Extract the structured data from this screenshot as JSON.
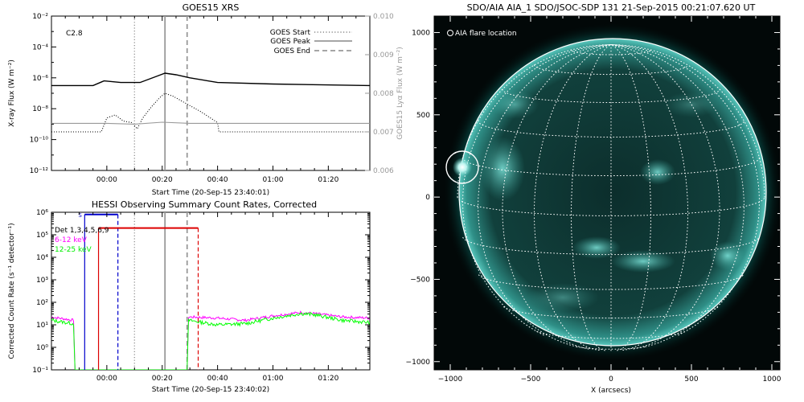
{
  "chart_data": [
    {
      "type": "line",
      "title": "GOES15 XRS",
      "xlabel": "Start Time (20-Sep-15 23:40:01)",
      "ylabel": "X-ray Flux (W m⁻²)",
      "ylabel_right": "GOES15 Lyα Flux (W m⁻²)",
      "x_ticks": [
        "00:00",
        "00:20",
        "00:40",
        "01:00",
        "01:20"
      ],
      "y_ticks": [
        "10⁻¹²",
        "10⁻¹⁰",
        "10⁻⁸",
        "10⁻⁶",
        "10⁻⁴",
        "10⁻²"
      ],
      "y_ticks_right": [
        "0.006",
        "0.007",
        "0.008",
        "0.009",
        "0.010"
      ],
      "xlim_min": [
        -20,
        95
      ],
      "ylim_log10": [
        -12,
        -2
      ],
      "ylim_right": [
        0.006,
        0.01
      ],
      "flare_class": "C2.8",
      "legend": [
        "GOES Start",
        "GOES Peak",
        "GOES End"
      ],
      "legend_placement": "top-right",
      "events_min": {
        "start": 10,
        "peak": 21,
        "end": 29
      },
      "series": [
        {
          "name": "",
          "x": [
            -20,
            -5,
            -1,
            5,
            12,
            18,
            21,
            25,
            30,
            40,
            60,
            95
          ],
          "log10y": [
            -6.5,
            -6.5,
            -6.2,
            -6.3,
            -6.3,
            -5.9,
            -5.7,
            -5.8,
            -6.0,
            -6.3,
            -6.4,
            -6.5
          ]
        },
        {
          "name": "",
          "x": [
            -20,
            -2,
            0,
            3,
            6,
            9,
            11,
            13,
            16,
            19,
            21,
            24,
            28,
            34,
            40,
            40.5,
            60,
            95
          ],
          "log10y": [
            -9.5,
            -9.5,
            -8.6,
            -8.4,
            -8.8,
            -8.9,
            -9.3,
            -8.6,
            -7.9,
            -7.3,
            -7.0,
            -7.2,
            -7.6,
            -8.2,
            -8.9,
            -9.5,
            -9.5,
            -9.5
          ]
        },
        {
          "name": "",
          "x": [
            -20,
            0,
            10,
            20,
            30,
            40,
            60,
            80,
            95
          ],
          "y_right": [
            0.00722,
            0.00722,
            0.0072,
            0.00725,
            0.00722,
            0.00722,
            0.00722,
            0.00722,
            0.00722
          ]
        }
      ]
    },
    {
      "type": "line",
      "title": "HESSI Observing Summary Count Rates, Corrected",
      "xlabel": "Start Time (20-Sep-15 23:40:02)",
      "ylabel": "Corrected Count Rate (s⁻¹ detector⁻¹)",
      "x_ticks": [
        "00:00",
        "00:20",
        "00:40",
        "01:00",
        "01:20"
      ],
      "y_ticks": [
        "10⁻¹",
        "10⁰",
        "10¹",
        "10²",
        "10³",
        "10⁴",
        "10⁵",
        "10⁶"
      ],
      "xlim_min": [
        -20,
        95
      ],
      "ylim_log10": [
        -1,
        6
      ],
      "legend": [
        {
          "text": "Det 1,3,4,5,6,9",
          "color": "#000000"
        },
        {
          "text": "6-12 keV",
          "color": "#ff00ff"
        },
        {
          "text": "12-25 keV",
          "color": "#00ff00"
        }
      ],
      "legend_placement": "top-left",
      "events_min": {
        "start": 10,
        "peak": 21,
        "end": 29
      },
      "flag_markers": {
        "s_label": "S",
        "blue_min": [
          -8,
          4
        ],
        "red_min": [
          -3,
          33
        ],
        "red_log10": 5.3
      },
      "series": [
        {
          "name": "6-12 keV",
          "color": "#ff00ff",
          "x": [
            -20,
            -12,
            -11.5,
            29,
            29.5,
            40,
            50,
            60,
            70,
            75,
            85,
            95
          ],
          "log10y": [
            1.35,
            1.2,
            -1,
            -1,
            1.35,
            1.3,
            1.2,
            1.4,
            1.55,
            1.5,
            1.35,
            1.3
          ]
        },
        {
          "name": "12-25 keV",
          "color": "#00ff00",
          "x": [
            -20,
            -12,
            -11.5,
            29,
            29.5,
            40,
            50,
            60,
            70,
            75,
            85,
            95
          ],
          "log10y": [
            1.2,
            1.05,
            -1,
            -1,
            1.2,
            1.0,
            1.05,
            1.3,
            1.5,
            1.45,
            1.2,
            1.1
          ]
        }
      ]
    },
    {
      "type": "heatmap",
      "title": "SDO/AIA AIA_1 SDO/JSOC-SDP 131 21-Sep-2015 00:21:07.620 UT",
      "xlabel": "X (arcsecs)",
      "ylabel": "",
      "x_ticks": [
        "−1000",
        "−500",
        "0",
        "500",
        "1000"
      ],
      "y_ticks": [
        "−1000",
        "−500",
        "0",
        "500",
        "1000"
      ],
      "xlim": [
        -1100,
        1050
      ],
      "ylim": [
        -1050,
        1100
      ],
      "annotation": "AIA flare location",
      "flare_location_arcsec": [
        -935,
        155
      ],
      "solar_radius_arcsec": 955
    }
  ]
}
